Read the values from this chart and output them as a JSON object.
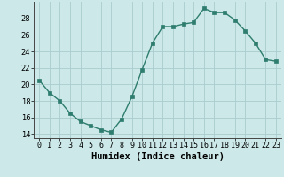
{
  "x": [
    0,
    1,
    2,
    3,
    4,
    5,
    6,
    7,
    8,
    9,
    10,
    11,
    12,
    13,
    14,
    15,
    16,
    17,
    18,
    19,
    20,
    21,
    22,
    23
  ],
  "y": [
    20.5,
    19.0,
    18.0,
    16.5,
    15.5,
    15.0,
    14.5,
    14.2,
    15.8,
    18.5,
    21.8,
    25.0,
    27.0,
    27.0,
    27.3,
    27.5,
    29.2,
    28.7,
    28.7,
    27.8,
    26.5,
    25.0,
    23.0,
    22.8
  ],
  "xlabel": "Humidex (Indice chaleur)",
  "line_color": "#2e7d6e",
  "marker_color": "#2e7d6e",
  "bg_color": "#cce8e8",
  "grid_color": "#aacccc",
  "ylim": [
    13.5,
    30.0
  ],
  "xlim": [
    -0.5,
    23.5
  ],
  "yticks": [
    14,
    16,
    18,
    20,
    22,
    24,
    26,
    28
  ],
  "xtick_labels": [
    "0",
    "1",
    "2",
    "3",
    "4",
    "5",
    "6",
    "7",
    "8",
    "9",
    "10",
    "11",
    "12",
    "13",
    "14",
    "15",
    "16",
    "17",
    "18",
    "19",
    "20",
    "21",
    "22",
    "23"
  ],
  "tick_fontsize": 6.0,
  "xlabel_fontsize": 7.5
}
